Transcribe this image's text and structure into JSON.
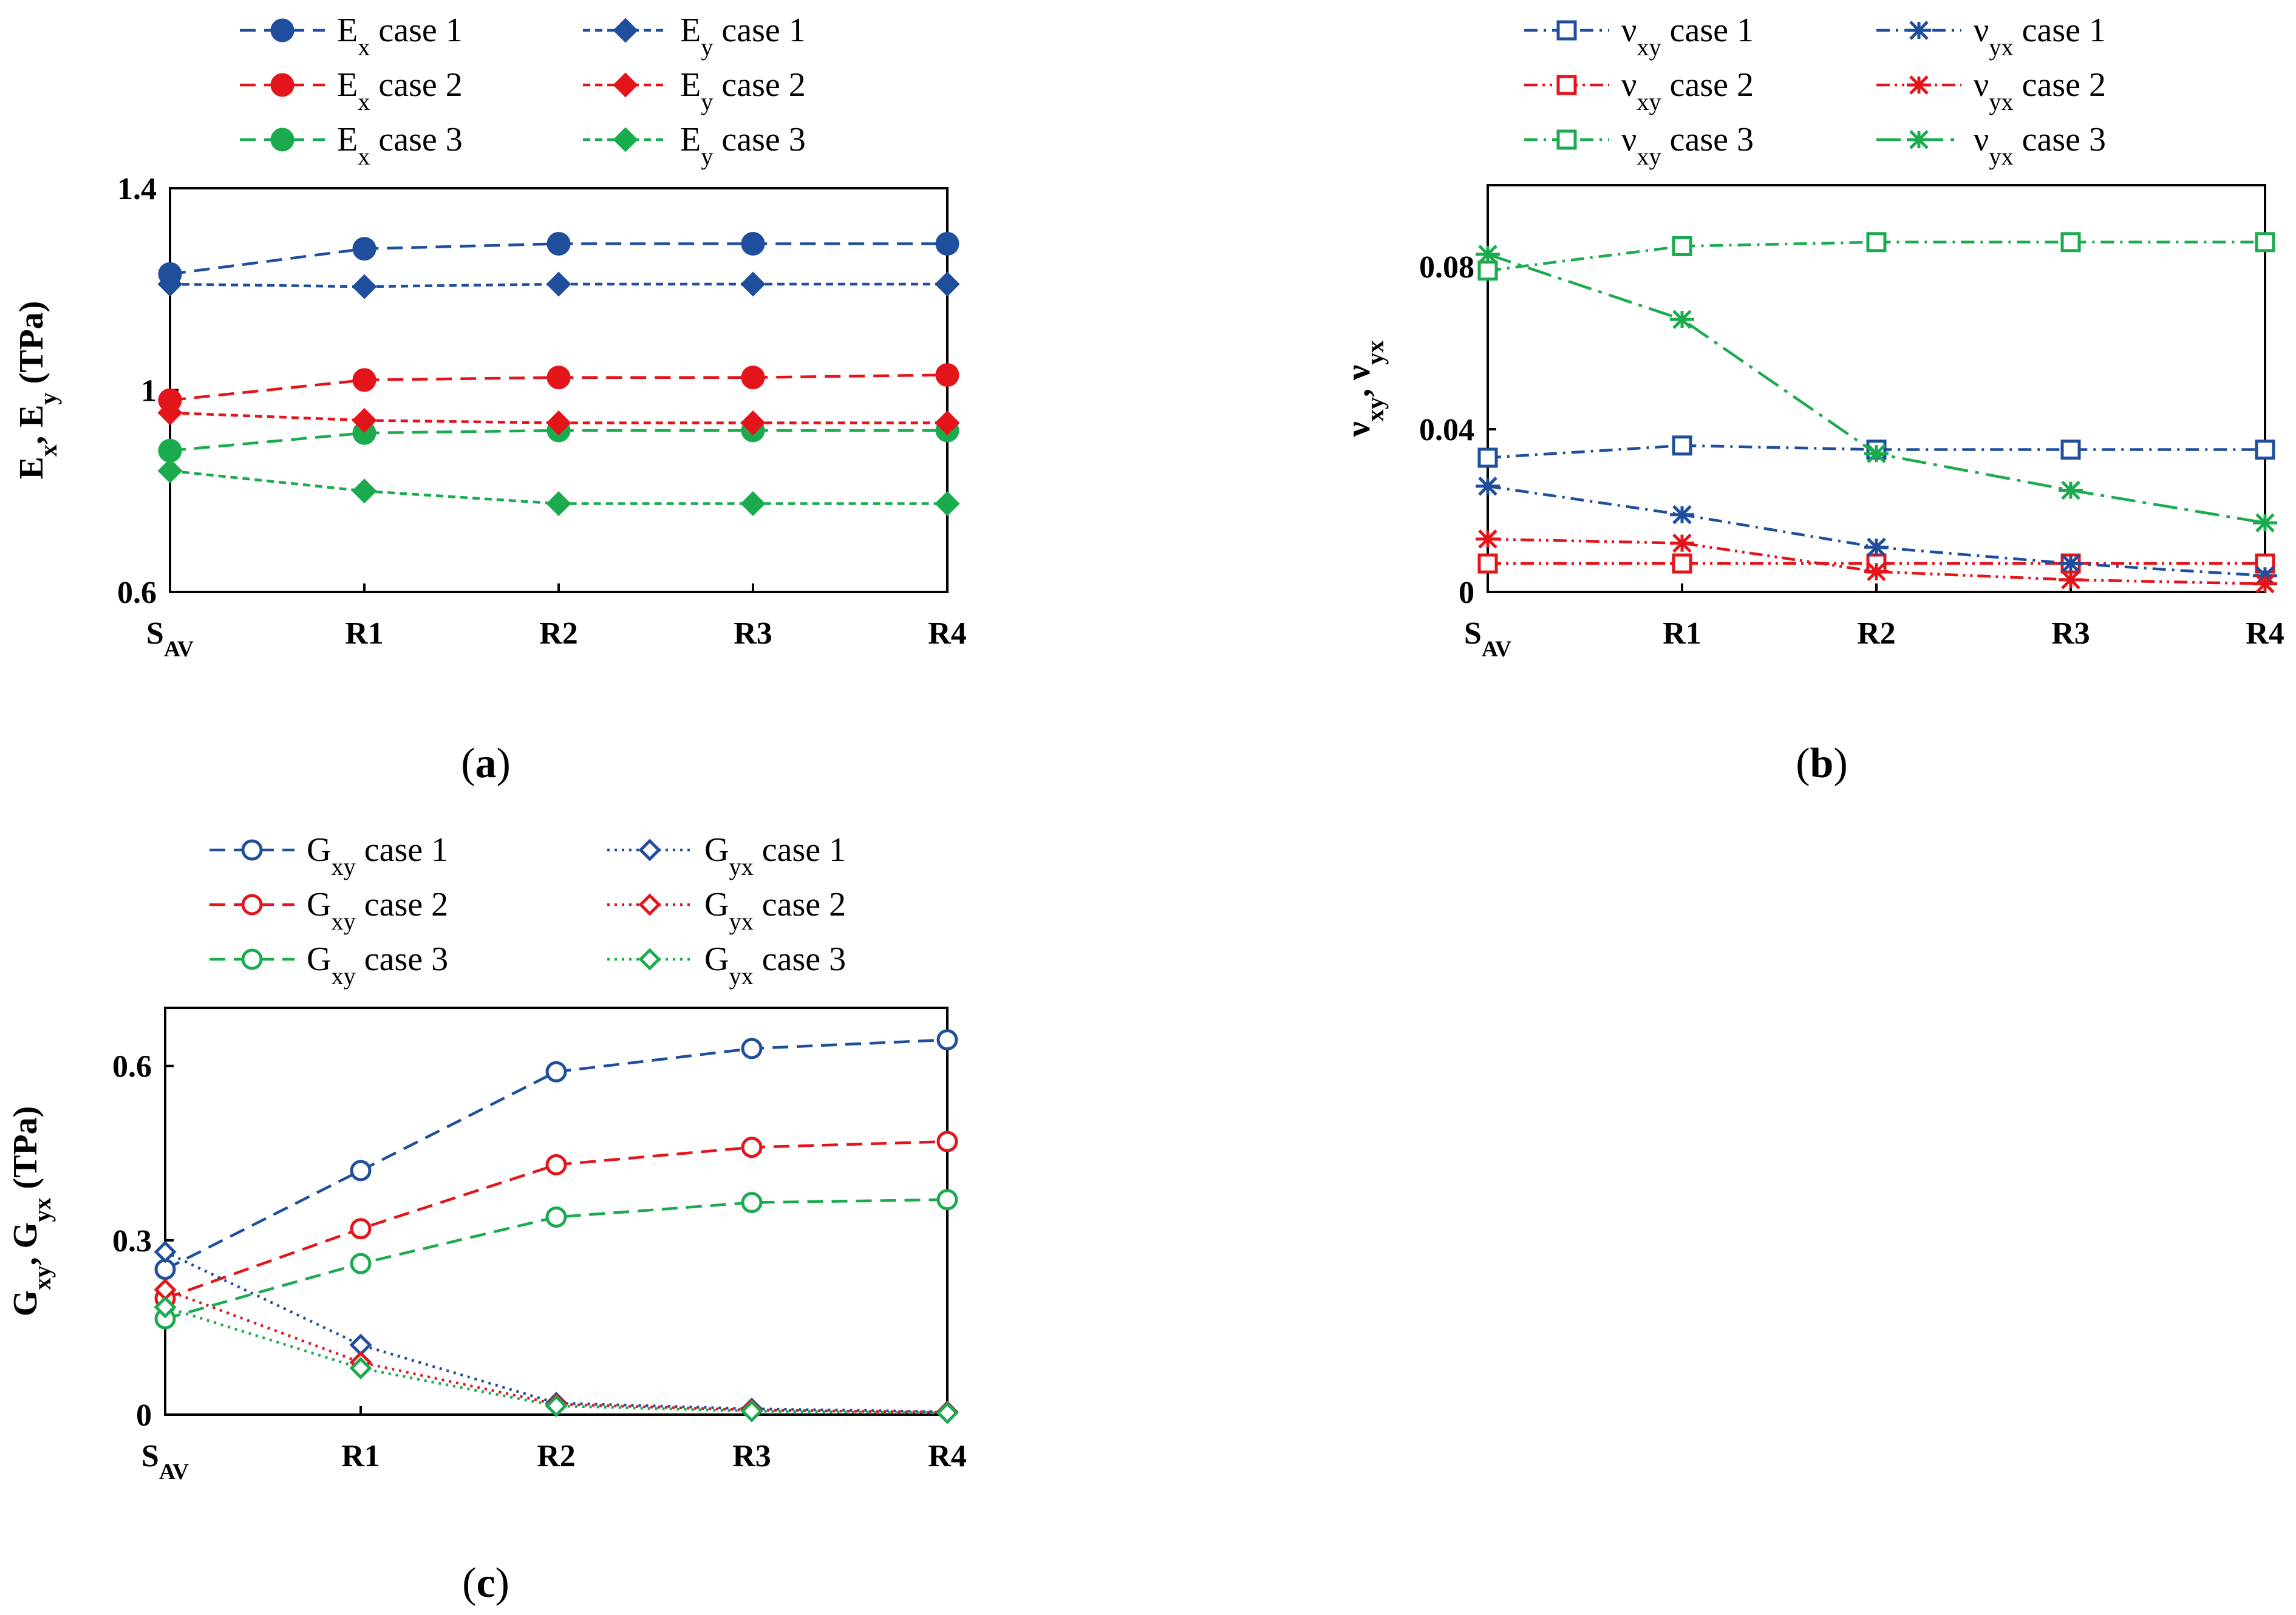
{
  "chart_data": [
    {
      "id": "a",
      "type": "line",
      "caption_open": "(",
      "caption_letter": "a",
      "caption_close": ")",
      "ylabel_parts": [
        {
          "t": "E"
        },
        {
          "t": "x",
          "sub": true
        },
        {
          "t": ", E"
        },
        {
          "t": "y",
          "sub": true
        },
        {
          "t": "  (TPa)"
        }
      ],
      "categories": [
        {
          "main": "S",
          "sub": "AV"
        },
        {
          "main": "R1"
        },
        {
          "main": "R2"
        },
        {
          "main": "R3"
        },
        {
          "main": "R4"
        }
      ],
      "ylim": [
        0.6,
        1.4
      ],
      "yticks": [
        {
          "v": 0.6,
          "label": "0.6"
        },
        {
          "v": 1.0,
          "label": "1"
        },
        {
          "v": 1.4,
          "label": "1.4"
        }
      ],
      "legend_columns": 2,
      "series": [
        {
          "name_main": "E",
          "name_sub": "x",
          "name_rest": " case 1",
          "color": "#1f4e9c",
          "marker": "circle",
          "filled": true,
          "dash": "long",
          "values": [
            1.23,
            1.28,
            1.29,
            1.29,
            1.29
          ]
        },
        {
          "name_main": "E",
          "name_sub": "x",
          "name_rest": " case 2",
          "color": "#e3141a",
          "marker": "circle",
          "filled": true,
          "dash": "long",
          "values": [
            0.98,
            1.02,
            1.025,
            1.025,
            1.03
          ]
        },
        {
          "name_main": "E",
          "name_sub": "x",
          "name_rest": " case 3",
          "color": "#1aab4e",
          "marker": "circle",
          "filled": true,
          "dash": "long",
          "values": [
            0.88,
            0.915,
            0.92,
            0.92,
            0.92
          ]
        },
        {
          "name_main": "E",
          "name_sub": "y",
          "name_rest": " case 1",
          "color": "#1f4e9c",
          "marker": "diamond",
          "filled": true,
          "dash": "short",
          "values": [
            1.21,
            1.205,
            1.21,
            1.21,
            1.21
          ]
        },
        {
          "name_main": "E",
          "name_sub": "y",
          "name_rest": " case 2",
          "color": "#e3141a",
          "marker": "diamond",
          "filled": true,
          "dash": "short",
          "values": [
            0.955,
            0.94,
            0.935,
            0.935,
            0.935
          ]
        },
        {
          "name_main": "E",
          "name_sub": "y",
          "name_rest": " case 3",
          "color": "#1aab4e",
          "marker": "diamond",
          "filled": true,
          "dash": "short",
          "values": [
            0.84,
            0.8,
            0.775,
            0.775,
            0.775
          ]
        }
      ]
    },
    {
      "id": "b",
      "type": "line",
      "caption_open": "(",
      "caption_letter": "b",
      "caption_close": ")",
      "ylabel_parts": [
        {
          "t": "ν"
        },
        {
          "t": "xy",
          "sub": true
        },
        {
          "t": ", ν"
        },
        {
          "t": "yx",
          "sub": true
        }
      ],
      "categories": [
        {
          "main": "S",
          "sub": "AV"
        },
        {
          "main": "R1"
        },
        {
          "main": "R2"
        },
        {
          "main": "R3"
        },
        {
          "main": "R4"
        }
      ],
      "ylim": [
        0,
        0.1
      ],
      "yticks": [
        {
          "v": 0,
          "label": "0"
        },
        {
          "v": 0.04,
          "label": "0.04"
        },
        {
          "v": 0.08,
          "label": "0.08"
        }
      ],
      "legend_columns": 2,
      "series": [
        {
          "name_main": "ν",
          "name_sub": "xy",
          "name_rest": "   case 1",
          "color": "#1f4e9c",
          "marker": "square",
          "filled": false,
          "dash": "dashdot",
          "values": [
            0.033,
            0.036,
            0.035,
            0.035,
            0.035
          ]
        },
        {
          "name_main": "ν",
          "name_sub": "xy",
          "name_rest": "   case 2",
          "color": "#e3141a",
          "marker": "square",
          "filled": false,
          "dash": "dashdotdot",
          "values": [
            0.007,
            0.007,
            0.007,
            0.007,
            0.007
          ]
        },
        {
          "name_main": "ν",
          "name_sub": "xy",
          "name_rest": "   case 3",
          "color": "#1aab4e",
          "marker": "square",
          "filled": false,
          "dash": "dashdot",
          "values": [
            0.079,
            0.085,
            0.086,
            0.086,
            0.086
          ]
        },
        {
          "name_main": "ν",
          "name_sub": "yx",
          "name_rest": "   case 1",
          "color": "#1f4e9c",
          "marker": "asterisk",
          "filled": false,
          "dash": "dashdot",
          "values": [
            0.026,
            0.019,
            0.011,
            0.007,
            0.004
          ]
        },
        {
          "name_main": "ν",
          "name_sub": "yx",
          "name_rest": "   case 2",
          "color": "#e3141a",
          "marker": "asterisk",
          "filled": false,
          "dash": "dashdotdot",
          "values": [
            0.013,
            0.012,
            0.005,
            0.003,
            0.002
          ]
        },
        {
          "name_main": "ν",
          "name_sub": "yx",
          "name_rest": "   case 3",
          "color": "#1aab4e",
          "marker": "asterisk",
          "filled": false,
          "dash": "longdashdot",
          "values": [
            0.083,
            0.067,
            0.034,
            0.025,
            0.017
          ]
        }
      ]
    },
    {
      "id": "c",
      "type": "line",
      "caption_open": "(",
      "caption_letter": "c",
      "caption_close": ")",
      "ylabel_parts": [
        {
          "t": "G"
        },
        {
          "t": "xy",
          "sub": true
        },
        {
          "t": ", G"
        },
        {
          "t": "yx",
          "sub": true
        },
        {
          "t": "  (TPa)"
        }
      ],
      "categories": [
        {
          "main": "S",
          "sub": "AV"
        },
        {
          "main": "R1"
        },
        {
          "main": "R2"
        },
        {
          "main": "R3"
        },
        {
          "main": "R4"
        }
      ],
      "ylim": [
        0,
        0.7
      ],
      "yticks": [
        {
          "v": 0,
          "label": "0"
        },
        {
          "v": 0.3,
          "label": "0.3"
        },
        {
          "v": 0.6,
          "label": "0.6"
        }
      ],
      "legend_columns": 2,
      "series": [
        {
          "name_main": "G",
          "name_sub": "xy",
          "name_rest": "  case 1",
          "color": "#1f4e9c",
          "marker": "circle",
          "filled": false,
          "dash": "long",
          "values": [
            0.25,
            0.42,
            0.59,
            0.63,
            0.645
          ]
        },
        {
          "name_main": "G",
          "name_sub": "xy",
          "name_rest": "  case 2",
          "color": "#e3141a",
          "marker": "circle",
          "filled": false,
          "dash": "long",
          "values": [
            0.2,
            0.32,
            0.43,
            0.46,
            0.47
          ]
        },
        {
          "name_main": "G",
          "name_sub": "xy",
          "name_rest": "  case 3",
          "color": "#1aab4e",
          "marker": "circle",
          "filled": false,
          "dash": "long",
          "values": [
            0.165,
            0.26,
            0.34,
            0.365,
            0.37
          ]
        },
        {
          "name_main": "G",
          "name_sub": "yx",
          "name_rest": "  case 1",
          "color": "#1f4e9c",
          "marker": "diamond",
          "filled": false,
          "dash": "dot",
          "values": [
            0.28,
            0.12,
            0.02,
            0.01,
            0.005
          ]
        },
        {
          "name_main": "G",
          "name_sub": "yx",
          "name_rest": "  case 2",
          "color": "#e3141a",
          "marker": "diamond",
          "filled": false,
          "dash": "dot",
          "values": [
            0.215,
            0.09,
            0.018,
            0.008,
            0.004
          ]
        },
        {
          "name_main": "G",
          "name_sub": "yx",
          "name_rest": "  case 3",
          "color": "#1aab4e",
          "marker": "diamond",
          "filled": false,
          "dash": "dot",
          "values": [
            0.185,
            0.08,
            0.015,
            0.006,
            0.003
          ]
        }
      ]
    }
  ]
}
